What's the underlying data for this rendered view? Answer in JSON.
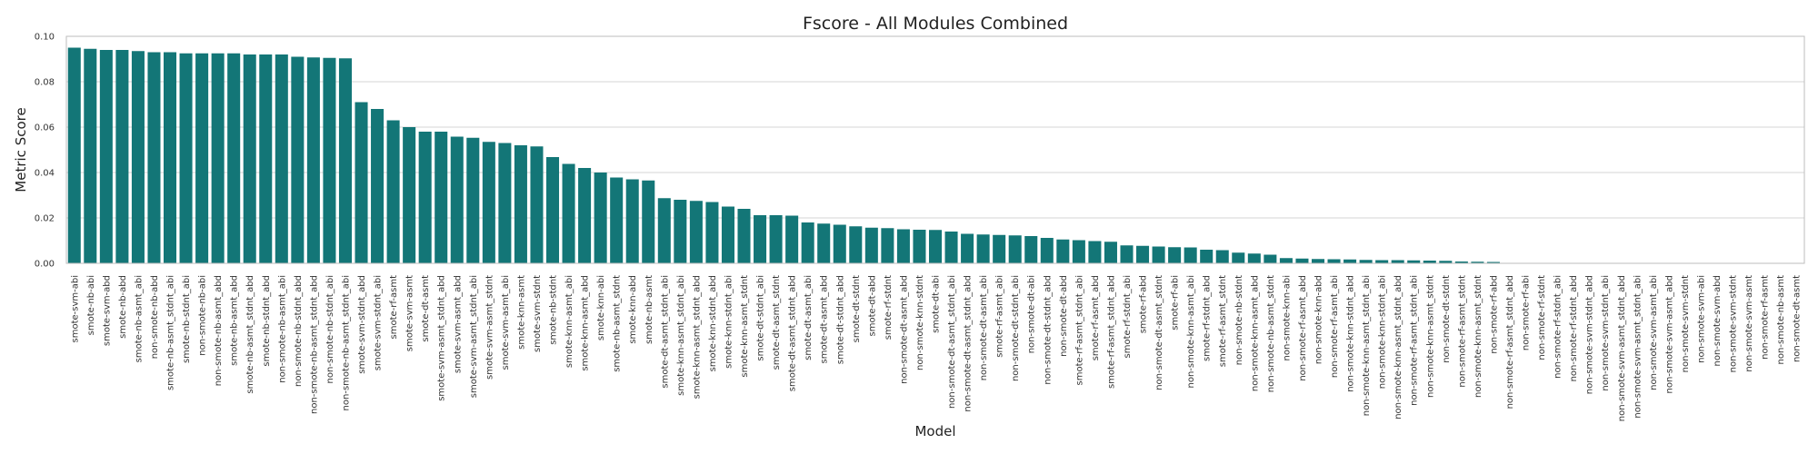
{
  "chart_data": {
    "type": "bar",
    "title": "Fscore - All Modules Combined",
    "xlabel": "Model",
    "ylabel": "Metric Score",
    "ylim": [
      0,
      0.1
    ],
    "yticks": [
      0,
      0.02,
      0.04,
      0.06,
      0.08,
      0.1
    ],
    "ytick_labels": [
      "0.00",
      "0.02",
      "0.04",
      "0.06",
      "0.08",
      "0.10"
    ],
    "grid": "horizontal",
    "bar_color": "#137677",
    "categories": [
      "smote-svm-abi",
      "smote-nb-abi",
      "smote-svm-abd",
      "smote-nb-abd",
      "smote-nb-asmt_abi",
      "non-smote-nb-abd",
      "smote-nb-asmt_stdnt_abi",
      "smote-nb-stdnt_abi",
      "non-smote-nb-abi",
      "non-smote-nb-asmt_abd",
      "smote-nb-asmt_abd",
      "smote-nb-asmt_stdnt_abd",
      "smote-nb-stdnt_abd",
      "non-smote-nb-asmt_abi",
      "non-smote-nb-stdnt_abd",
      "non-smote-nb-asmt_stdnt_abd",
      "non-smote-nb-stdnt_abi",
      "non-smote-nb-asmt_stdnt_abi",
      "smote-svm-stdnt_abd",
      "smote-svm-stdnt_abi",
      "smote-rf-asmt",
      "smote-svm-asmt",
      "smote-dt-asmt",
      "smote-svm-asmt_stdnt_abd",
      "smote-svm-asmt_abd",
      "smote-svm-asmt_stdnt_abi",
      "smote-svm-asmt_stdnt",
      "smote-svm-asmt_abi",
      "smote-knn-asmt",
      "smote-svm-stdnt",
      "smote-nb-stdnt",
      "smote-knn-asmt_abi",
      "smote-knn-asmt_abd",
      "smote-knn-abi",
      "smote-nb-asmt_stdnt",
      "smote-knn-abd",
      "smote-nb-asmt",
      "smote-dt-asmt_stdnt_abi",
      "smote-knn-asmt_stdnt_abi",
      "smote-knn-asmt_stdnt_abd",
      "smote-knn-stdnt_abd",
      "smote-knn-stdnt_abi",
      "smote-knn-asmt_stdnt",
      "smote-dt-stdnt_abi",
      "smote-dt-asmt_stdnt",
      "smote-dt-asmt_stdnt_abd",
      "smote-dt-asmt_abi",
      "smote-dt-asmt_abd",
      "smote-dt-stdnt_abd",
      "smote-dt-stdnt",
      "smote-dt-abd",
      "smote-rf-stdnt",
      "non-smote-dt-asmt_abd",
      "non-smote-knn-stdnt",
      "smote-dt-abi",
      "non-smote-dt-asmt_stdnt_abi",
      "non-smote-dt-asmt_stdnt_abd",
      "non-smote-dt-asmt_abi",
      "smote-rf-asmt_abi",
      "non-smote-dt-stdnt_abi",
      "non-smote-dt-abi",
      "non-smote-dt-stdnt_abd",
      "non-smote-dt-abd",
      "smote-rf-asmt_stdnt_abi",
      "smote-rf-asmt_abd",
      "smote-rf-asmt_stdnt_abd",
      "smote-rf-stdnt_abi",
      "smote-rf-abd",
      "non-smote-dt-asmt_stdnt",
      "smote-rf-abi",
      "non-smote-knn-asmt_abi",
      "smote-rf-stdnt_abd",
      "smote-rf-asmt_stdnt",
      "non-smote-nb-stdnt",
      "non-smote-knn-asmt_abd",
      "non-smote-nb-asmt_stdnt",
      "non-smote-knn-abi",
      "non-smote-rf-asmt_abd",
      "non-smote-knn-abd",
      "non-smote-rf-asmt_abi",
      "non-smote-knn-stdnt_abd",
      "non-smote-knn-asmt_stdnt_abi",
      "non-smote-knn-stdnt_abi",
      "non-smote-knn-asmt_stdnt_abd",
      "non-smote-rf-asmt_stdnt_abi",
      "non-smote-knn-asmt_stdnt",
      "non-smote-dt-stdnt",
      "non-smote-rf-asmt_stdnt",
      "non-smote-knn-asmt_stdnt",
      "non-smote-rf-abd",
      "non-smote-rf-asmt_stdnt_abd",
      "non-smote-rf-abi",
      "non-smote-rf-stdnt",
      "non-smote-rf-stdnt_abi",
      "non-smote-rf-stdnt_abd",
      "non-smote-svm-stdnt_abd",
      "non-smote-svm-stdnt_abi",
      "non-smote-svm-asmt_stdnt_abd",
      "non-smote-svm-asmt_stdnt_abi",
      "non-smote-svm-asmt_abi",
      "non-smote-svm-asmt_abd",
      "non-smote-svm-stdnt",
      "non-smote-svm-abi",
      "non-smote-svm-abd",
      "non-smote-svm-stdnt",
      "non-smote-svm-asmt",
      "non-smote-rf-asmt",
      "non-smote-nb-asmt",
      "non-smote-dt-asmt"
    ],
    "values": [
      0.095,
      0.0945,
      0.094,
      0.094,
      0.0935,
      0.093,
      0.093,
      0.0925,
      0.0925,
      0.0925,
      0.0925,
      0.092,
      0.092,
      0.092,
      0.091,
      0.0907,
      0.0905,
      0.0903,
      0.071,
      0.068,
      0.063,
      0.06,
      0.058,
      0.058,
      0.0558,
      0.0553,
      0.0535,
      0.053,
      0.052,
      0.0515,
      0.0468,
      0.0438,
      0.042,
      0.04,
      0.0378,
      0.037,
      0.0365,
      0.0287,
      0.028,
      0.0275,
      0.027,
      0.025,
      0.024,
      0.0212,
      0.0212,
      0.021,
      0.018,
      0.0175,
      0.017,
      0.0163,
      0.0157,
      0.0155,
      0.015,
      0.0148,
      0.0147,
      0.014,
      0.013,
      0.0127,
      0.0125,
      0.0123,
      0.012,
      0.0112,
      0.0105,
      0.0102,
      0.0098,
      0.0095,
      0.0079,
      0.0077,
      0.0074,
      0.0071,
      0.007,
      0.006,
      0.0058,
      0.0047,
      0.0043,
      0.0038,
      0.0023,
      0.0021,
      0.0019,
      0.0018,
      0.0017,
      0.0015,
      0.0014,
      0.0014,
      0.0013,
      0.0012,
      0.0011,
      0.0008,
      0.0007,
      0.0006,
      0,
      0,
      0,
      0,
      0,
      0,
      0,
      0,
      0,
      0,
      0,
      0,
      0,
      0,
      0,
      0,
      0,
      0,
      0
    ]
  }
}
